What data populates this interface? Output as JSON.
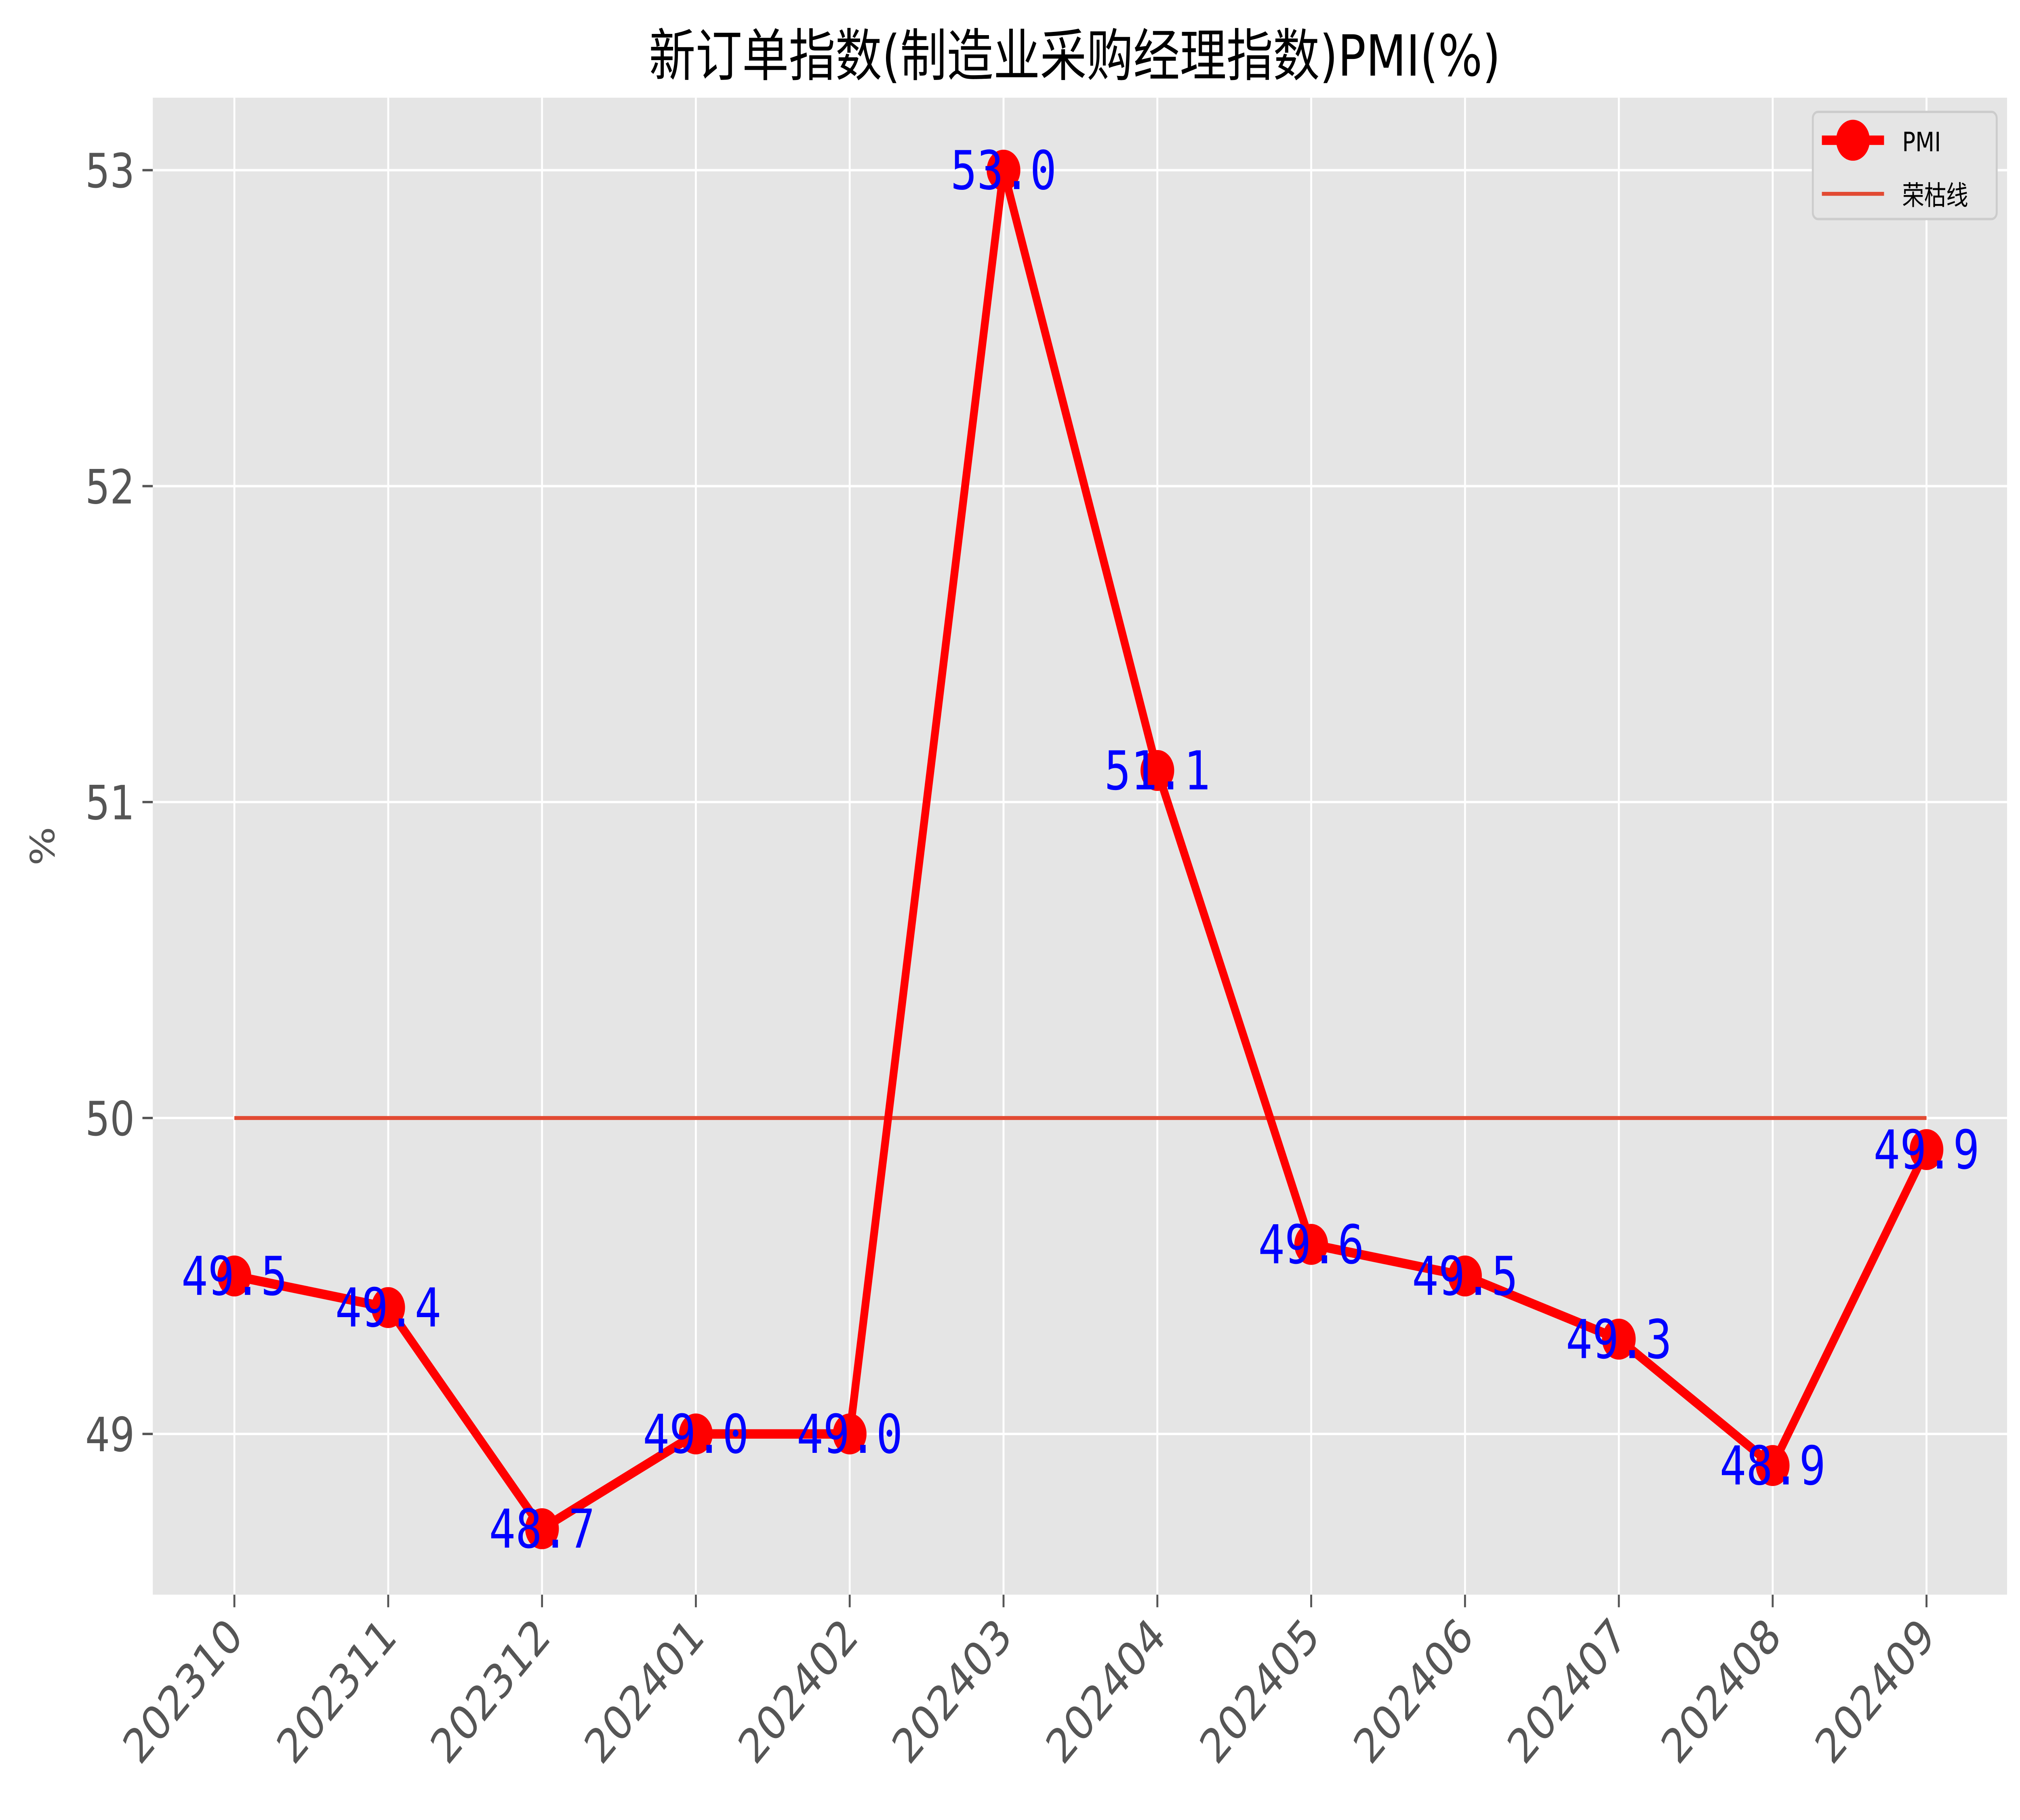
{
  "chart_data": {
    "type": "line",
    "title": "新订单指数(制造业采购经理指数)PMI(%)",
    "xlabel": "",
    "ylabel": "%",
    "categories": [
      "202310",
      "202311",
      "202312",
      "202401",
      "202402",
      "202403",
      "202404",
      "202405",
      "202406",
      "202407",
      "202408",
      "202409"
    ],
    "series": [
      {
        "name": "PMI",
        "color": "#ff0000",
        "values": [
          49.5,
          49.4,
          48.7,
          49.0,
          49.0,
          53.0,
          51.1,
          49.6,
          49.5,
          49.3,
          48.9,
          49.9
        ]
      },
      {
        "name": "荣枯线",
        "color": "#e24a33",
        "values": [
          50,
          50,
          50,
          50,
          50,
          50,
          50,
          50,
          50,
          50,
          50,
          50
        ]
      }
    ],
    "data_labels": [
      "49.5",
      "49.4",
      "48.7",
      "49.0",
      "49.0",
      "53.0",
      "51.1",
      "49.6",
      "49.5",
      "49.3",
      "48.9",
      "49.9"
    ],
    "yticks": [
      49,
      50,
      51,
      52,
      53
    ],
    "ylim": [
      48.49,
      53.21
    ],
    "grid": true,
    "legend_position": "upper right",
    "background": "#e5e5e5",
    "label_color": "#0000ff"
  },
  "legend": {
    "items": [
      "PMI",
      "荣枯线"
    ]
  }
}
